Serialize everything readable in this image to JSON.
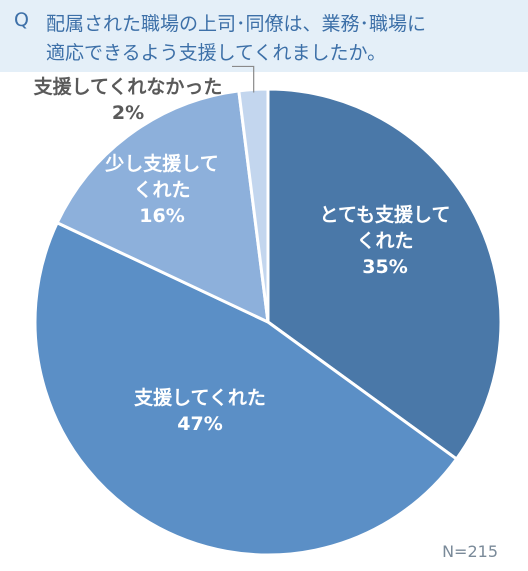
{
  "question": {
    "mark": "Q",
    "line1": "配属された職場の上司･同僚は、業務･職場に",
    "line2": "適応できるよう支援してくれましたか。"
  },
  "note": "N=215",
  "chart_data": {
    "type": "pie",
    "categories": [
      "とても支援してくれた",
      "支援してくれた",
      "少し支援してくれた",
      "支援してくれなかった"
    ],
    "values": [
      35,
      47,
      16,
      2
    ],
    "unit": "%",
    "colors": [
      "#4a78a8",
      "#5b8fc6",
      "#8db0db",
      "#c3d6ee"
    ],
    "label_lines": [
      [
        "とても支援して",
        "くれた",
        "35%"
      ],
      [
        "支援してくれた",
        "47%"
      ],
      [
        "少し支援して",
        "くれた",
        "16%"
      ],
      [
        "支援してくれなかった",
        "2%"
      ]
    ],
    "label_colors": [
      "#ffffff",
      "#ffffff",
      "#ffffff",
      "#5a5a5a"
    ]
  }
}
